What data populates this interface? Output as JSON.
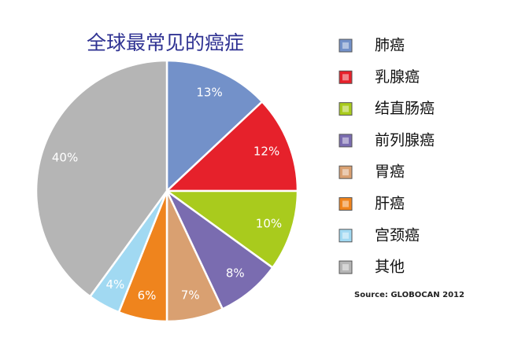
{
  "chart_data": {
    "type": "pie",
    "title": "全球最常见的癌症",
    "categories": [
      "肺癌",
      "乳腺癌",
      "结直肠癌",
      "前列腺癌",
      "胃癌",
      "肝癌",
      "宫颈癌",
      "其他"
    ],
    "values": [
      13,
      12,
      10,
      8,
      7,
      6,
      4,
      40
    ],
    "value_labels": [
      "13%",
      "12%",
      "10%",
      "8%",
      "7%",
      "6%",
      "4%",
      "40%"
    ],
    "colors": [
      "#7391c9",
      "#e6212b",
      "#a9cb1d",
      "#7a6cb0",
      "#d9a071",
      "#ef841d",
      "#a1d9f2",
      "#b5b5b5"
    ],
    "legend": "right",
    "source": "Source: GLOBOCAN 2012"
  }
}
